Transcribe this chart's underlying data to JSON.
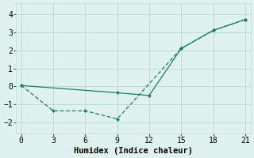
{
  "line1_x": [
    0,
    9,
    12,
    15,
    18,
    21
  ],
  "line1_y": [
    0.05,
    -0.35,
    -0.5,
    2.1,
    3.1,
    3.7
  ],
  "line2_x": [
    0,
    3,
    6,
    9,
    15,
    18,
    21
  ],
  "line2_y": [
    0.05,
    -1.35,
    -1.35,
    -1.8,
    2.1,
    3.1,
    3.7
  ],
  "line_color": "#1a7a6e",
  "bg_color": "#dff2ee",
  "grid_color": "#b8ddd6",
  "xlabel": "Humidex (Indice chaleur)",
  "xlim": [
    -0.5,
    21.5
  ],
  "ylim": [
    -2.6,
    4.6
  ],
  "xticks": [
    0,
    3,
    6,
    9,
    12,
    15,
    18,
    21
  ],
  "yticks": [
    -2,
    -1,
    0,
    1,
    2,
    3,
    4
  ],
  "xlabel_fontsize": 7.5,
  "tick_fontsize": 7
}
